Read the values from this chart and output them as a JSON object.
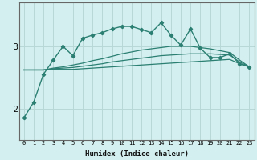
{
  "xlabel": "Humidex (Indice chaleur)",
  "ylabel": "",
  "bg_color": "#d4efef",
  "grid_color": "#b8d8d8",
  "line_color": "#2a7f72",
  "x": [
    0,
    1,
    2,
    3,
    4,
    5,
    6,
    7,
    8,
    9,
    10,
    11,
    12,
    13,
    14,
    15,
    16,
    17,
    18,
    19,
    20,
    21,
    22,
    23
  ],
  "line1": [
    1.85,
    2.1,
    2.55,
    2.78,
    3.0,
    2.85,
    3.13,
    3.18,
    3.22,
    3.28,
    3.32,
    3.32,
    3.27,
    3.22,
    3.38,
    3.18,
    3.02,
    3.28,
    2.97,
    2.82,
    2.82,
    2.88,
    2.72,
    2.67
  ],
  "line2": [
    2.62,
    2.62,
    2.62,
    2.63,
    2.63,
    2.63,
    2.64,
    2.65,
    2.66,
    2.67,
    2.68,
    2.69,
    2.7,
    2.71,
    2.72,
    2.73,
    2.74,
    2.75,
    2.76,
    2.77,
    2.78,
    2.79,
    2.72,
    2.67
  ],
  "line3": [
    2.62,
    2.62,
    2.62,
    2.64,
    2.65,
    2.66,
    2.68,
    2.7,
    2.72,
    2.75,
    2.77,
    2.79,
    2.81,
    2.83,
    2.85,
    2.86,
    2.87,
    2.88,
    2.88,
    2.88,
    2.87,
    2.86,
    2.75,
    2.67
  ],
  "line4": [
    2.62,
    2.62,
    2.62,
    2.65,
    2.67,
    2.7,
    2.73,
    2.77,
    2.8,
    2.84,
    2.88,
    2.91,
    2.94,
    2.96,
    2.98,
    3.0,
    3.0,
    3.0,
    2.98,
    2.96,
    2.93,
    2.9,
    2.78,
    2.67
  ],
  "yticks": [
    2,
    3
  ],
  "ylim": [
    1.5,
    3.7
  ],
  "xlim": [
    -0.5,
    23.5
  ]
}
